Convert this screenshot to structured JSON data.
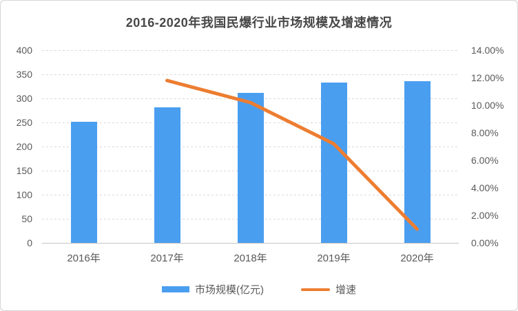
{
  "title": "2016-2020年我国民爆行业市场规模及增速情况",
  "colors": {
    "bar_blue": "#4A9EF0",
    "line_orange": "#ED7D31",
    "axis_text": "#595959",
    "title_text": "#474747",
    "gridline": "#DADADA"
  },
  "chart_data": {
    "type": "bar",
    "subtype": "combo bar+line, dual axis",
    "title": "2016-2020年我国民爆行业市场规模及增速情况",
    "categories": [
      "2016年",
      "2017年",
      "2018年",
      "2019年",
      "2020年"
    ],
    "series": [
      {
        "name": "市场规模(亿元)",
        "type": "bar",
        "axis": "left",
        "color": "#4A9EF0",
        "values": [
          252,
          282,
          311,
          333,
          336
        ]
      },
      {
        "name": "增速",
        "type": "line",
        "axis": "right",
        "color": "#ED7D31",
        "unit": "%",
        "values": [
          null,
          11.8,
          10.2,
          7.2,
          1.0
        ]
      }
    ],
    "left_axis": {
      "min": 0,
      "max": 400,
      "step": 50,
      "ticks": [
        "0",
        "50",
        "100",
        "150",
        "200",
        "250",
        "300",
        "350",
        "400"
      ]
    },
    "right_axis": {
      "min": 0,
      "max": 14,
      "step": 2,
      "ticks": [
        "0.00%",
        "2.00%",
        "4.00%",
        "6.00%",
        "8.00%",
        "10.00%",
        "12.00%",
        "14.00%"
      ]
    },
    "grid": "horizontal dashed lines, on",
    "legend_position": "bottom"
  },
  "legend": {
    "items": [
      {
        "label": "市场规模(亿元)",
        "swatch": "bar"
      },
      {
        "label": "增速",
        "swatch": "line"
      }
    ]
  }
}
